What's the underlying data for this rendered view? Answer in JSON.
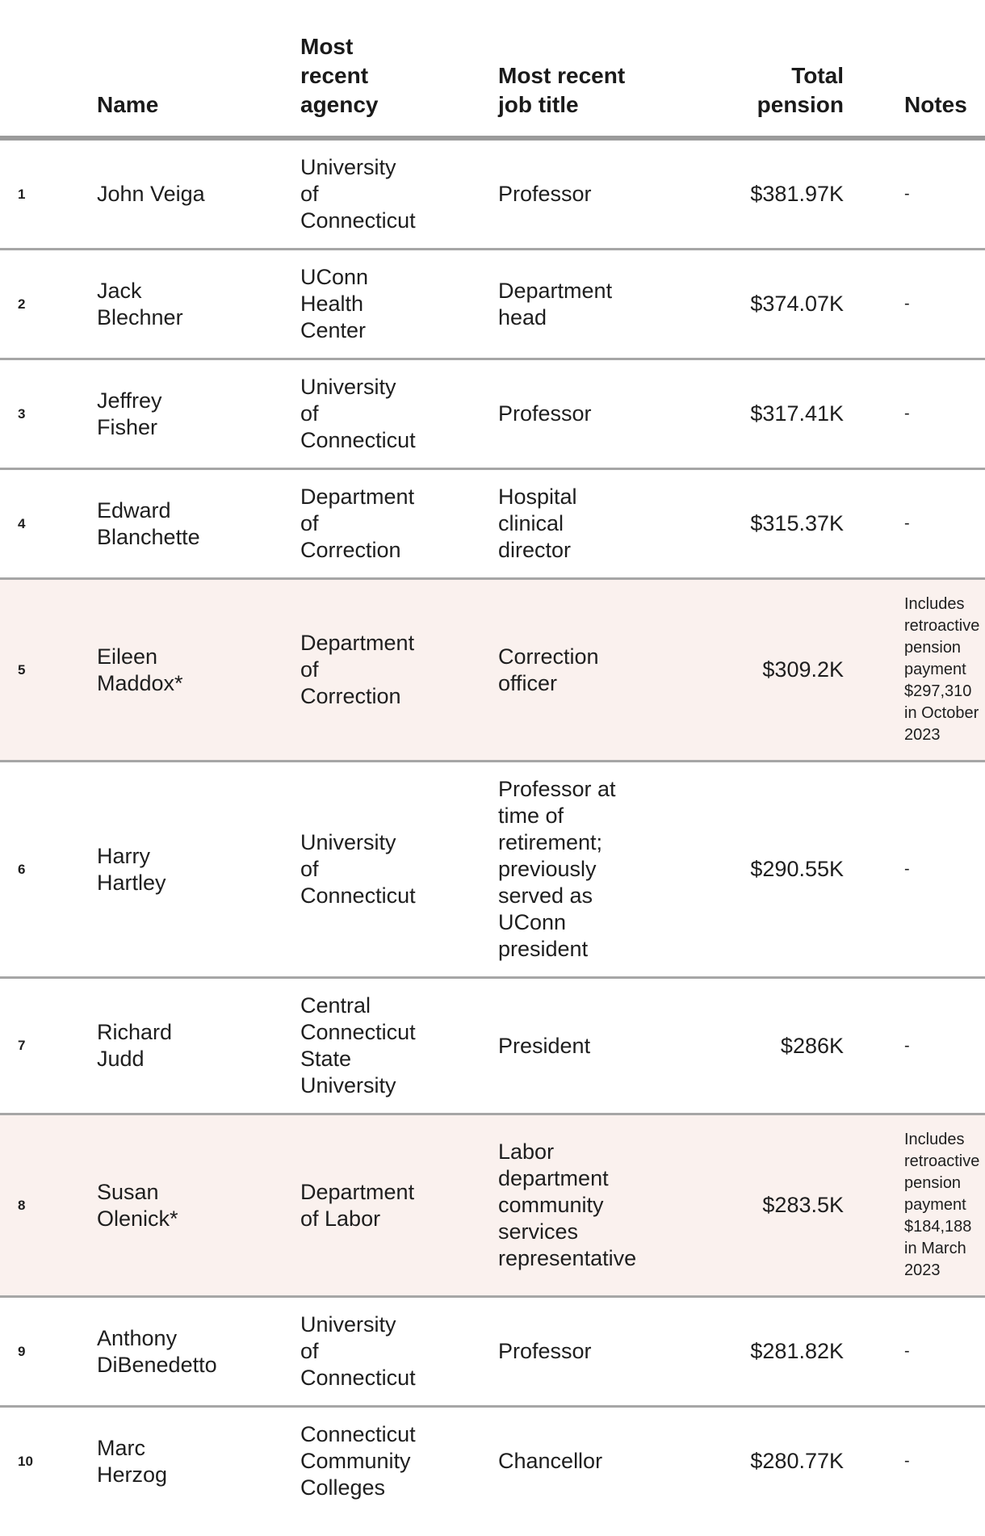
{
  "table": {
    "headers": {
      "num": "",
      "name": "Name",
      "agency": "Most\nrecent\nagency",
      "job": "Most recent\njob title",
      "pension": "Total\npension",
      "notes": "Notes"
    },
    "highlight_color": "#faf1ee",
    "rows": [
      {
        "num": "1",
        "name": "John Veiga",
        "agency": "University\nof\nConnecticut",
        "job": "Professor",
        "pension": "$381.97K",
        "notes": "-",
        "highlight": false
      },
      {
        "num": "2",
        "name": "Jack\nBlechner",
        "agency": "UConn\nHealth\nCenter",
        "job": "Department\nhead",
        "pension": "$374.07K",
        "notes": "-",
        "highlight": false
      },
      {
        "num": "3",
        "name": "Jeffrey\nFisher",
        "agency": "University\nof\nConnecticut",
        "job": "Professor",
        "pension": "$317.41K",
        "notes": "-",
        "highlight": false
      },
      {
        "num": "4",
        "name": "Edward\nBlanchette",
        "agency": "Department\nof\nCorrection",
        "job": "Hospital\nclinical\ndirector",
        "pension": "$315.37K",
        "notes": "-",
        "highlight": false
      },
      {
        "num": "5",
        "name": "Eileen\nMaddox*",
        "agency": "Department\nof\nCorrection",
        "job": "Correction\nofficer",
        "pension": "$309.2K",
        "notes": "Includes\nretroactive\npension\npayment\n$297,310\nin October\n2023",
        "highlight": true
      },
      {
        "num": "6",
        "name": "Harry\nHartley",
        "agency": "University\nof\nConnecticut",
        "job": "Professor at\ntime of\nretirement;\npreviously\nserved as\nUConn\npresident",
        "pension": "$290.55K",
        "notes": "-",
        "highlight": false
      },
      {
        "num": "7",
        "name": "Richard\nJudd",
        "agency": "Central\nConnecticut\nState\nUniversity",
        "job": "President",
        "pension": "$286K",
        "notes": "-",
        "highlight": false
      },
      {
        "num": "8",
        "name": "Susan\nOlenick*",
        "agency": "Department\nof Labor",
        "job": "Labor\ndepartment\ncommunity\nservices\nrepresentative",
        "pension": "$283.5K",
        "notes": "Includes\nretroactive\npension\npayment\n$184,188\nin March\n2023",
        "highlight": true
      },
      {
        "num": "9",
        "name": "Anthony\nDiBenedetto",
        "agency": "University\nof\nConnecticut",
        "job": "Professor",
        "pension": "$281.82K",
        "notes": "-",
        "highlight": false
      },
      {
        "num": "10",
        "name": "Marc\nHerzog",
        "agency": "Connecticut\nCommunity\nColleges",
        "job": "Chancellor",
        "pension": "$280.77K",
        "notes": "-",
        "highlight": false
      }
    ]
  }
}
